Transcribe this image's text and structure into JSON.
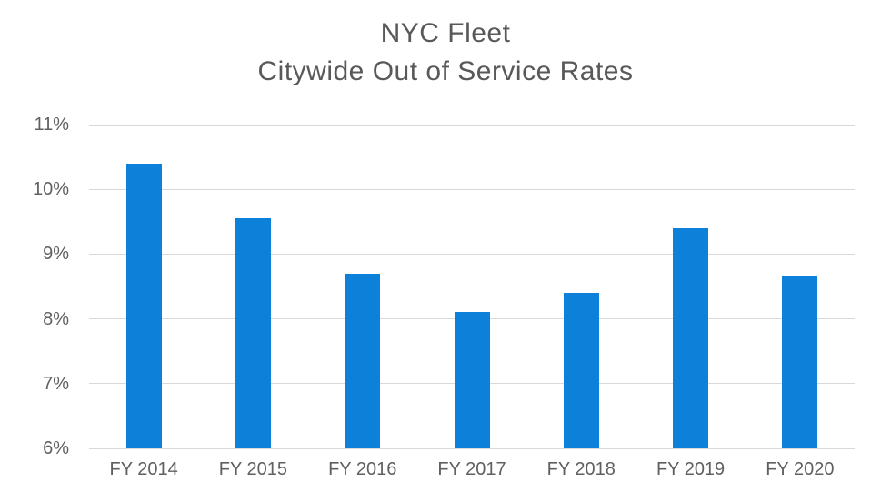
{
  "chart_data": {
    "type": "bar",
    "title": "NYC Fleet",
    "subtitle": "Citywide Out of Service Rates",
    "categories": [
      "FY 2014",
      "FY 2015",
      "FY 2016",
      "FY 2017",
      "FY 2018",
      "FY 2019",
      "FY 2020"
    ],
    "values": [
      10.4,
      9.55,
      8.7,
      8.1,
      8.4,
      9.4,
      8.65
    ],
    "value_unit": "%",
    "series_name": "Citywide Out of Service Rate",
    "ylim": [
      6,
      11
    ],
    "ytick_values": [
      6,
      7,
      8,
      9,
      10,
      11
    ],
    "ytick_labels": [
      "6%",
      "7%",
      "8%",
      "9%",
      "10%",
      "11%"
    ],
    "xlabel": "",
    "ylabel": "",
    "grid": "horizontal",
    "legend_position": "none",
    "colors": {
      "bar_fill": "#0d80da",
      "title_text": "#595959",
      "axis_text": "#606060",
      "gridline": "#d9d9d9",
      "background": "#ffffff"
    }
  }
}
